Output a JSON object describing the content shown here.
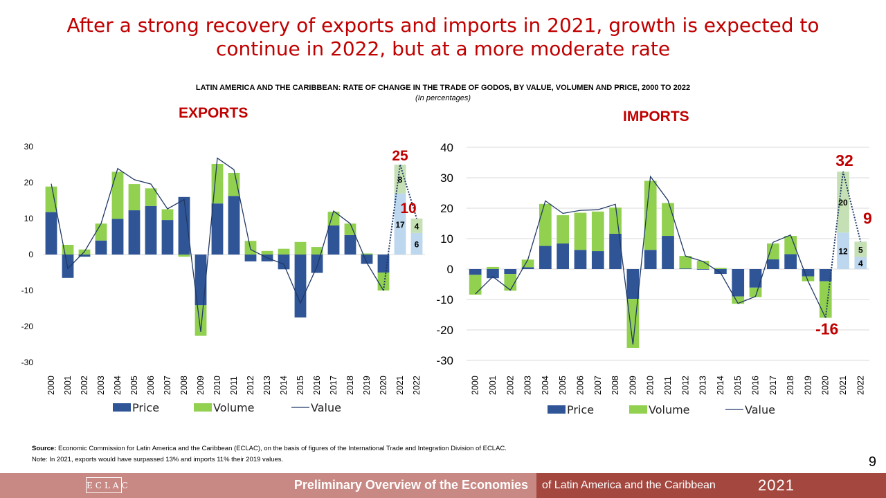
{
  "slide": {
    "title": "After a strong recovery of exports and imports in 2021, growth is expected to continue in 2022, but at a more moderate rate",
    "chart_title": "LATIN AMERICA AND THE CARIBBEAN: RATE OF CHANGE IN THE TRADE OF GODOS, BY VALUE, VOLUMEN AND PRICE, 2000 TO 2022",
    "chart_subtitle": "(In percentages)",
    "page_number": "9"
  },
  "footer": {
    "source_label": "Source:",
    "source_text": " Economic Commission for Latin America and the Caribbean (ECLAC), on the basis of figures of the International Trade and Integration Division of ECLAC.",
    "note_text": "Note: In 2021, exports would have surpassed 13% and imports 11% their 2019 values.",
    "logo_text": "ECLAC",
    "banner_bold": "Preliminary Overview of the Economies",
    "banner_regular": "of Latin America and the Caribbean",
    "banner_year": "2021"
  },
  "colors": {
    "price": "#2f5597",
    "volume": "#92d050",
    "value_line": "#1f3864",
    "price_projected": "#bdd7ee",
    "volume_projected": "#c5e0b4",
    "highlight": "#c00000",
    "grid": "#d9d9d9"
  },
  "chart_data": [
    {
      "type": "bar",
      "title": "EXPORTS",
      "categories": [
        "2000",
        "2001",
        "2002",
        "2003",
        "2004",
        "2005",
        "2006",
        "2007",
        "2008",
        "2009",
        "2010",
        "2011",
        "2012",
        "2013",
        "2014",
        "2015",
        "2016",
        "2017",
        "2018",
        "2019",
        "2020",
        "2021",
        "2022"
      ],
      "ylim": [
        -30,
        30
      ],
      "yticks": [
        -30,
        -20,
        -10,
        0,
        10,
        20,
        30
      ],
      "series": [
        {
          "name": "Price",
          "type": "stacked-bar",
          "values": [
            11.8,
            -6.5,
            -0.6,
            3.9,
            9.9,
            12.3,
            13.5,
            9.6,
            16,
            -14.1,
            14.2,
            16.3,
            -1.9,
            -1.9,
            -4.1,
            -17.5,
            -5.1,
            8.1,
            5.4,
            -2.6,
            -5,
            17,
            6
          ]
        },
        {
          "name": "Volume",
          "type": "stacked-bar",
          "values": [
            7.1,
            2.7,
            1.4,
            4.7,
            13.1,
            7.3,
            4.9,
            3,
            -0.6,
            -8.5,
            11,
            6.4,
            3.8,
            1,
            1.6,
            3.5,
            2.1,
            3.8,
            3.2,
            0.3,
            -5,
            8,
            4
          ]
        },
        {
          "name": "Value",
          "type": "line",
          "values": [
            19.7,
            -3.9,
            0.8,
            8.6,
            23.9,
            20.8,
            19.6,
            12.7,
            15.3,
            -21.5,
            26.8,
            23.6,
            1.4,
            -0.9,
            -2.7,
            -13.5,
            -3.3,
            12.1,
            8.6,
            -2.3,
            -10,
            25,
            10
          ]
        }
      ],
      "projected_categories": [
        "2021",
        "2022"
      ],
      "bar_labels": [
        {
          "category": "2021",
          "price": "17",
          "volume": "8"
        },
        {
          "category": "2022",
          "price": "6",
          "volume": "4"
        }
      ],
      "highlight_labels": [
        {
          "category": "2021",
          "text": "25"
        },
        {
          "category": "2022",
          "text": "10"
        }
      ],
      "legend": [
        "Price",
        "Volume",
        "Value"
      ]
    },
    {
      "type": "bar",
      "title": "IMPORTS",
      "categories": [
        "2000",
        "2001",
        "2002",
        "2003",
        "2004",
        "2005",
        "2006",
        "2007",
        "2008",
        "2009",
        "2010",
        "2011",
        "2012",
        "2013",
        "2014",
        "2015",
        "2016",
        "2017",
        "2018",
        "2019",
        "2020",
        "2021",
        "2022"
      ],
      "ylim": [
        -30,
        40
      ],
      "yticks": [
        -30,
        -20,
        -10,
        0,
        10,
        20,
        30,
        40
      ],
      "series": [
        {
          "name": "Price",
          "type": "stacked-bar",
          "values": [
            -1.9,
            -3,
            -1.6,
            0.6,
            7.6,
            8.4,
            6.3,
            5.9,
            11.6,
            -9.8,
            6.3,
            10.9,
            0.2,
            -0.2,
            -1.6,
            -9,
            -6.1,
            3.2,
            4.9,
            -2.4,
            -4,
            12,
            4
          ]
        },
        {
          "name": "Volume",
          "type": "stacked-bar",
          "values": [
            -6.5,
            0.7,
            -5.5,
            2.5,
            13.8,
            9.3,
            12.2,
            13,
            8.6,
            -16.1,
            22.7,
            10.8,
            4.1,
            2.7,
            0.4,
            -2.4,
            -3.1,
            5.2,
            6,
            -1.6,
            -12,
            20,
            5
          ]
        },
        {
          "name": "Value",
          "type": "line",
          "values": [
            -8.2,
            -2.5,
            -6.9,
            3.1,
            22.4,
            18.3,
            19.3,
            19.5,
            21.3,
            -24.8,
            30.4,
            22.6,
            4.3,
            2.5,
            -1.2,
            -11.3,
            -9,
            8.8,
            11.2,
            -4,
            -16,
            32,
            9
          ]
        }
      ],
      "projected_categories": [
        "2021",
        "2022"
      ],
      "bar_labels": [
        {
          "category": "2021",
          "price": "12",
          "volume": "20"
        },
        {
          "category": "2022",
          "price": "4",
          "volume": "5"
        }
      ],
      "highlight_labels": [
        {
          "category": "2020",
          "text": "-16"
        },
        {
          "category": "2021",
          "text": "32"
        },
        {
          "category": "2022",
          "text": "9"
        }
      ],
      "legend": [
        "Price",
        "Volume",
        "Value"
      ]
    }
  ]
}
